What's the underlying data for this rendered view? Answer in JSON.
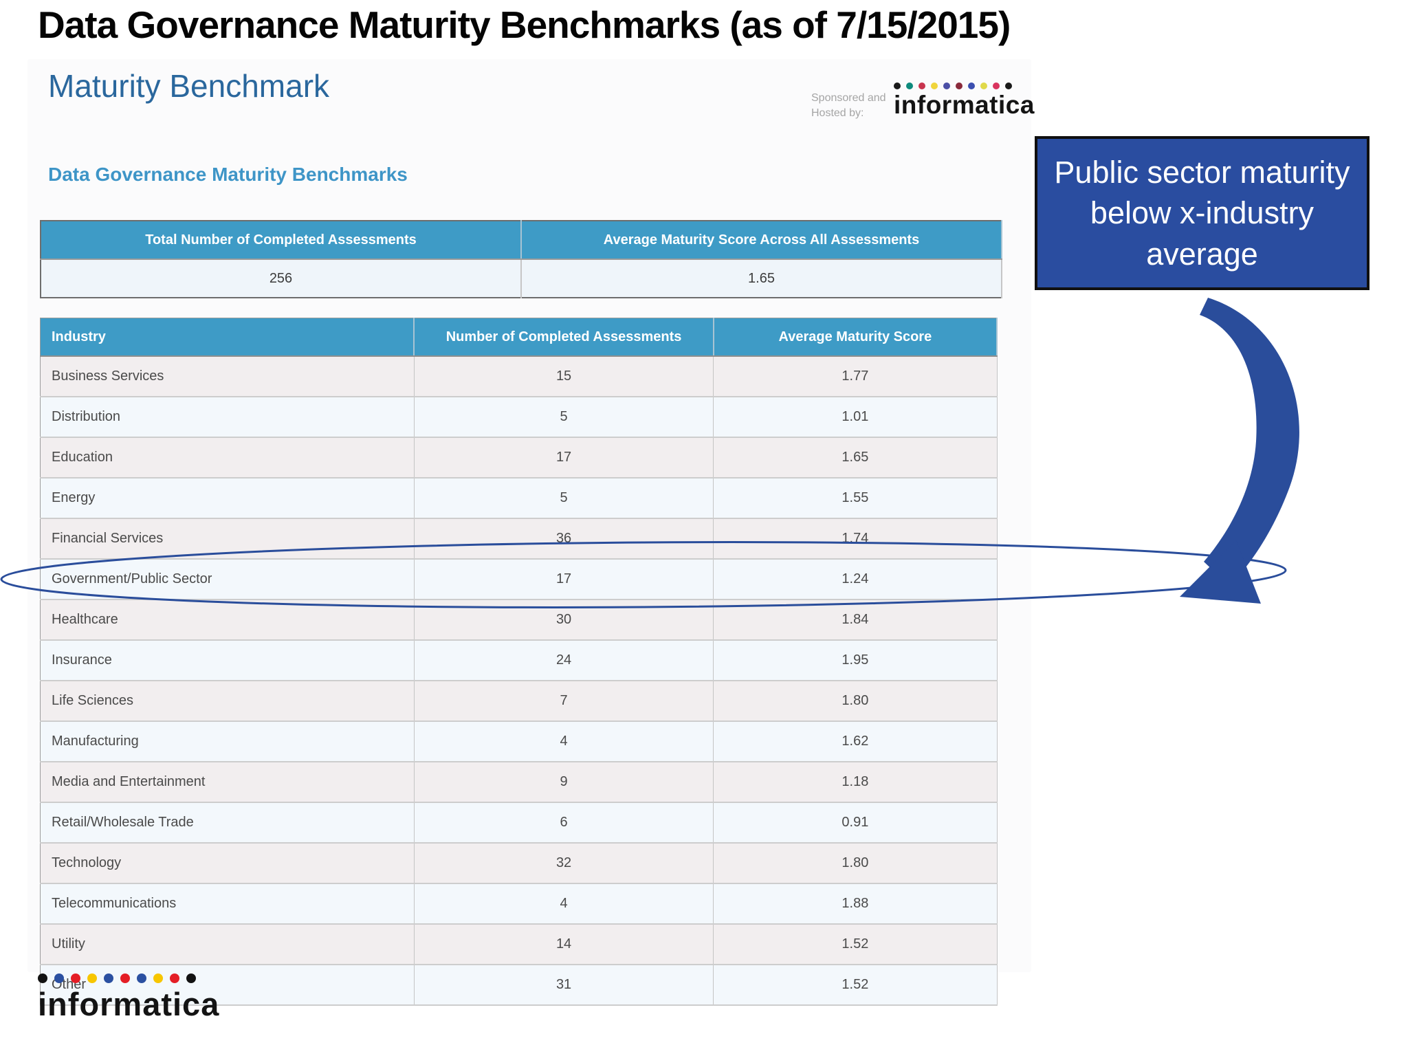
{
  "page": {
    "title": "Data Governance Maturity Benchmarks (as of 7/15/2015)"
  },
  "report": {
    "heading": "Maturity Benchmark",
    "subheading": "Data Governance Maturity Benchmarks",
    "sponsor_line1": "Sponsored and",
    "sponsor_line2": "Hosted by:"
  },
  "logo_top": {
    "wordmark": "informatica",
    "dot_colors": [
      "#1a1a1a",
      "#0e8a7d",
      "#c8344e",
      "#f0d53c",
      "#4b4fa6",
      "#8a2a3b",
      "#3b4fb0",
      "#e0d94a",
      "#d9345e",
      "#1a1a1a"
    ]
  },
  "logo_bottom": {
    "wordmark": "informatica",
    "dot_colors": [
      "#121212",
      "#2b50a1",
      "#e41e26",
      "#f7c600",
      "#2b50a1",
      "#e41e26",
      "#2b50a1",
      "#f7c600",
      "#e41e26",
      "#121212"
    ]
  },
  "summary_table": {
    "headers": [
      "Total Number of Completed Assessments",
      "Average Maturity Score Across All Assessments"
    ],
    "values": [
      "256",
      "1.65"
    ]
  },
  "industry_table": {
    "headers": [
      "Industry",
      "Number of Completed Assessments",
      "Average Maturity Score"
    ],
    "rows": [
      {
        "industry": "Business Services",
        "assessments": "15",
        "score": "1.77"
      },
      {
        "industry": "Distribution",
        "assessments": "5",
        "score": "1.01"
      },
      {
        "industry": "Education",
        "assessments": "17",
        "score": "1.65"
      },
      {
        "industry": "Energy",
        "assessments": "5",
        "score": "1.55"
      },
      {
        "industry": "Financial Services",
        "assessments": "36",
        "score": "1.74"
      },
      {
        "industry": "Government/Public Sector",
        "assessments": "17",
        "score": "1.24"
      },
      {
        "industry": "Healthcare",
        "assessments": "30",
        "score": "1.84"
      },
      {
        "industry": "Insurance",
        "assessments": "24",
        "score": "1.95"
      },
      {
        "industry": "Life Sciences",
        "assessments": "7",
        "score": "1.80"
      },
      {
        "industry": "Manufacturing",
        "assessments": "4",
        "score": "1.62"
      },
      {
        "industry": "Media and Entertainment",
        "assessments": "9",
        "score": "1.18"
      },
      {
        "industry": "Retail/Wholesale Trade",
        "assessments": "6",
        "score": "0.91"
      },
      {
        "industry": "Technology",
        "assessments": "32",
        "score": "1.80"
      },
      {
        "industry": "Telecommunications",
        "assessments": "4",
        "score": "1.88"
      },
      {
        "industry": "Utility",
        "assessments": "14",
        "score": "1.52"
      },
      {
        "industry": "Other",
        "assessments": "31",
        "score": "1.52"
      }
    ]
  },
  "callout": {
    "text": "Public sector maturity below x-industry average",
    "background": "#2a4da0"
  },
  "annotation": {
    "highlighted_row": "Government/Public Sector",
    "arrow_color": "#2a4d9b",
    "ellipse_color": "#2a4d9b",
    "header_blue": "#3e9bc6",
    "heading_blue": "#2a679d",
    "subheading_blue": "#3e95c7"
  }
}
